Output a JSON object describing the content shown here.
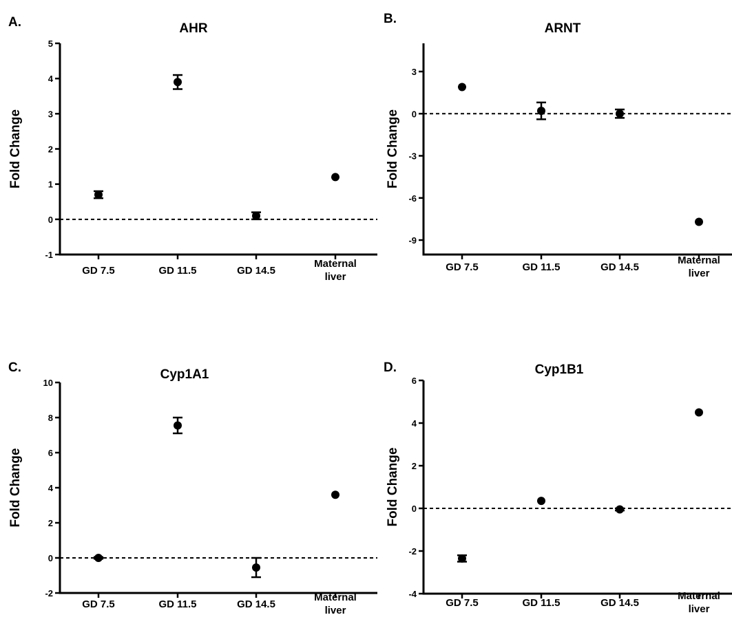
{
  "chart_data": [
    {
      "panel": "A.",
      "type": "scatter",
      "title": "AHR",
      "ylabel": "Fold Change",
      "xlabel": "",
      "categories": [
        [
          "GD 7.5"
        ],
        [
          "GD 11.5"
        ],
        [
          "GD 14.5"
        ],
        [
          "Maternal",
          "liver"
        ]
      ],
      "values": [
        0.7,
        3.9,
        0.1,
        1.2
      ],
      "errors": [
        0.1,
        0.2,
        0.1,
        0.0
      ],
      "ylim": [
        -1,
        5
      ],
      "yticks": [
        -1,
        0,
        1,
        2,
        3,
        4,
        5
      ],
      "reference_line": 0,
      "grid": false
    },
    {
      "panel": "B.",
      "type": "scatter",
      "title": "ARNT",
      "ylabel": "Fold Change",
      "xlabel": "",
      "categories": [
        [
          "GD 7.5"
        ],
        [
          "GD 11.5"
        ],
        [
          "GD 14.5"
        ],
        [
          "Maternal",
          "liver"
        ]
      ],
      "values": [
        1.9,
        0.2,
        0.0,
        -7.7
      ],
      "errors": [
        0.0,
        0.6,
        0.3,
        0.0
      ],
      "ylim": [
        -10,
        5
      ],
      "yticks": [
        -9,
        -6,
        -3,
        0,
        3
      ],
      "reference_line": 0,
      "grid": false
    },
    {
      "panel": "C.",
      "type": "scatter",
      "title": "Cyp1A1",
      "ylabel": "Fold Change",
      "xlabel": "",
      "categories": [
        [
          "GD 7.5"
        ],
        [
          "GD 11.5"
        ],
        [
          "GD 14.5"
        ],
        [
          "Maternal",
          "liver"
        ]
      ],
      "values": [
        0.0,
        7.55,
        -0.55,
        3.6
      ],
      "errors": [
        0.05,
        0.45,
        0.55,
        0.0
      ],
      "ylim": [
        -2,
        10
      ],
      "yticks": [
        -2,
        0,
        2,
        4,
        6,
        8,
        10
      ],
      "reference_line": 0,
      "grid": false
    },
    {
      "panel": "D.",
      "type": "scatter",
      "title": "Cyp1B1",
      "ylabel": "Fold Change",
      "xlabel": "",
      "categories": [
        [
          "GD 7.5"
        ],
        [
          "GD 11.5"
        ],
        [
          "GD 14.5"
        ],
        [
          "Maternal",
          "liver"
        ]
      ],
      "values": [
        -2.35,
        0.35,
        -0.05,
        4.5
      ],
      "errors": [
        0.15,
        0.0,
        0.05,
        0.0
      ],
      "ylim": [
        -4,
        6
      ],
      "yticks": [
        -4,
        -2,
        0,
        2,
        4,
        6
      ],
      "reference_line": 0,
      "grid": false
    }
  ]
}
